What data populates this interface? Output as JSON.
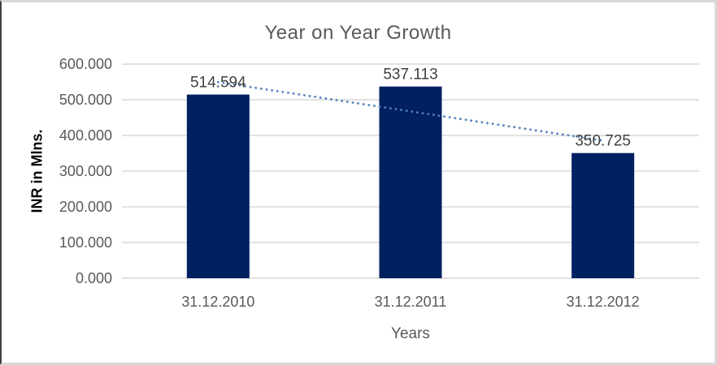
{
  "chart_data": {
    "type": "bar",
    "title": "Year on Year Growth",
    "categories": [
      "31.12.2010",
      "31.12.2011",
      "31.12.2012"
    ],
    "values": [
      514.594,
      537.113,
      350.725
    ],
    "data_labels": [
      "514.594",
      "537.113",
      "350.725"
    ],
    "xlabel": "Years",
    "ylabel": "INR in Mlns.",
    "ylim": [
      0,
      600
    ],
    "ytick_step": 100,
    "ytick_labels": [
      "0.000",
      "100.000",
      "200.000",
      "300.000",
      "400.000",
      "500.000",
      "600.000"
    ],
    "grid": true,
    "legend": "none",
    "trendline": {
      "type": "linear",
      "style": "dotted",
      "color": "#4F81BD"
    },
    "colors": {
      "bar": "#002060",
      "trendline": "#4F81BD",
      "gridline": "#D9D9D9",
      "axis_line": "#D9D9D9",
      "tick_text": "#595959",
      "data_label_text": "#404040",
      "title_text": "#595959",
      "background": "#FFFFFF"
    }
  }
}
